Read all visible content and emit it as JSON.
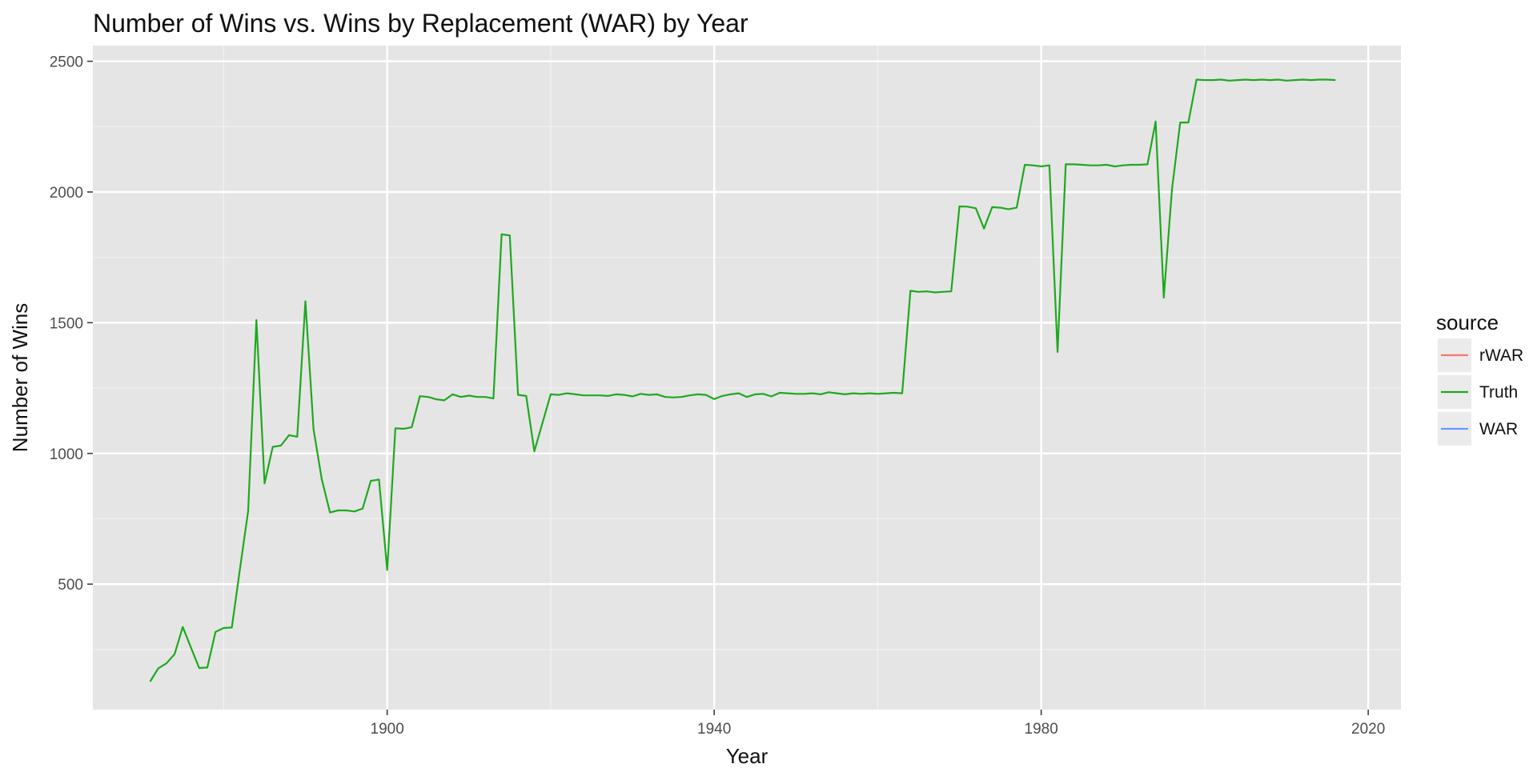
{
  "chart_data": {
    "type": "line",
    "title": "Number of Wins vs. Wins by Replacement (WAR) by Year",
    "xlabel": "Year",
    "ylabel": "Number of Wins",
    "xlim": [
      1864,
      2024
    ],
    "ylim": [
      20,
      2560
    ],
    "x_ticks": [
      1900,
      1940,
      1980,
      2020
    ],
    "x_minor_ticks": [
      1880,
      1920,
      1960,
      2000
    ],
    "y_ticks": [
      500,
      1000,
      1500,
      2000,
      2500
    ],
    "y_minor_ticks": [
      250,
      750,
      1250,
      1750,
      2250
    ],
    "grid": true,
    "legend": {
      "title": "source",
      "position": "right",
      "entries": [
        {
          "label": "rWAR",
          "color": "#F8766D"
        },
        {
          "label": "Truth",
          "color": "#1FA81F"
        },
        {
          "label": "WAR",
          "color": "#619CFF"
        }
      ]
    },
    "series": [
      {
        "name": "Truth",
        "color": "#1FA81F",
        "x": [
          1871,
          1872,
          1873,
          1874,
          1875,
          1876,
          1877,
          1878,
          1879,
          1880,
          1881,
          1882,
          1883,
          1884,
          1885,
          1886,
          1887,
          1888,
          1889,
          1890,
          1891,
          1892,
          1893,
          1894,
          1895,
          1896,
          1897,
          1898,
          1899,
          1900,
          1901,
          1902,
          1903,
          1904,
          1905,
          1906,
          1907,
          1908,
          1909,
          1910,
          1911,
          1912,
          1913,
          1914,
          1915,
          1916,
          1917,
          1918,
          1919,
          1920,
          1921,
          1922,
          1923,
          1924,
          1925,
          1926,
          1927,
          1928,
          1929,
          1930,
          1931,
          1932,
          1933,
          1934,
          1935,
          1936,
          1937,
          1938,
          1939,
          1940,
          1941,
          1942,
          1943,
          1944,
          1945,
          1946,
          1947,
          1948,
          1949,
          1950,
          1951,
          1952,
          1953,
          1954,
          1955,
          1956,
          1957,
          1958,
          1959,
          1960,
          1961,
          1962,
          1963,
          1964,
          1965,
          1966,
          1967,
          1968,
          1969,
          1970,
          1971,
          1972,
          1973,
          1974,
          1975,
          1976,
          1977,
          1978,
          1979,
          1980,
          1981,
          1982,
          1983,
          1984,
          1985,
          1986,
          1987,
          1988,
          1989,
          1990,
          1991,
          1992,
          1993,
          1994,
          1995,
          1996,
          1997,
          1998,
          1999,
          2000,
          2001,
          2002,
          2003,
          2004,
          2005,
          2006,
          2007,
          2008,
          2009,
          2010,
          2011,
          2012,
          2013,
          2014,
          2015,
          2016
        ],
        "y": [
          127,
          178,
          197,
          232,
          336,
          257,
          179,
          181,
          317,
          332,
          334,
          559,
          780,
          1510,
          885,
          1025,
          1030,
          1070,
          1064,
          1582,
          1092,
          902,
          774,
          782,
          782,
          778,
          789,
          895,
          900,
          554,
          1096,
          1094,
          1100,
          1219,
          1216,
          1207,
          1203,
          1226,
          1216,
          1221,
          1216,
          1216,
          1210,
          1838,
          1834,
          1224,
          1220,
          1008,
          1117,
          1226,
          1224,
          1230,
          1226,
          1222,
          1222,
          1222,
          1220,
          1226,
          1224,
          1218,
          1228,
          1224,
          1226,
          1216,
          1214,
          1216,
          1222,
          1226,
          1224,
          1208,
          1220,
          1226,
          1230,
          1216,
          1226,
          1228,
          1218,
          1232,
          1230,
          1228,
          1228,
          1230,
          1226,
          1234,
          1230,
          1226,
          1230,
          1228,
          1230,
          1228,
          1230,
          1232,
          1230,
          1622,
          1618,
          1620,
          1616,
          1618,
          1620,
          1945,
          1944,
          1938,
          1860,
          1942,
          1940,
          1934,
          1940,
          2104,
          2102,
          2098,
          2102,
          1388,
          2106,
          2106,
          2104,
          2102,
          2102,
          2104,
          2098,
          2102,
          2104,
          2104,
          2106,
          2270,
          1596,
          2010,
          2266,
          2266,
          2430,
          2428,
          2428,
          2430,
          2426,
          2428,
          2430,
          2428,
          2430,
          2428,
          2430,
          2426,
          2428,
          2430,
          2428,
          2430,
          2430,
          2428
        ]
      }
    ]
  }
}
